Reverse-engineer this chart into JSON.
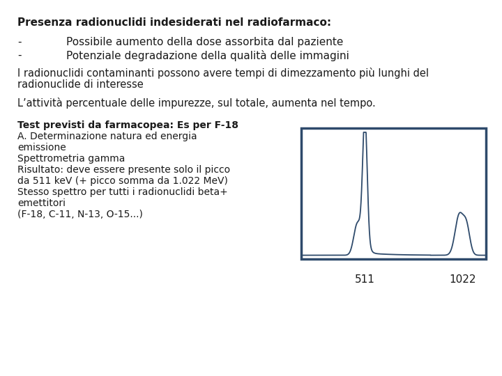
{
  "bg_color": "#ffffff",
  "title_bold": "Presenza radionuclidi indesiderati nel radiofarmaco:",
  "bullet1": "Possibile aumento della dose assorbita dal paziente",
  "bullet2": "Potenziale degradazione della qualità delle immagini",
  "para1a": "I radionuclidi contaminanti possono avere tempi di dimezzamento più lunghi del",
  "para1b": "radionuclide di interesse",
  "para2": "L’attività percentuale delle impurezze, sul totale, aumenta nel tempo.",
  "section_bold": "Test previsti da farmacopea: Es per F-18",
  "lines": [
    "A. Determinazione natura ed energia",
    "emissione",
    "Spettrometria gamma",
    "Risultato: deve essere presente solo il picco",
    "da 511 keV (+ picco somma da 1.022 MeV)",
    "Stesso spettro per tutti i radionuclidi beta+",
    "emettitori",
    "(F-18, C-11, N-13, O-15...)"
  ],
  "label_511": "511",
  "label_1022": "1022",
  "chart_border_color": "#2e4a6b",
  "chart_line_color": "#2e4a6b",
  "font_color": "#1a1a1a"
}
